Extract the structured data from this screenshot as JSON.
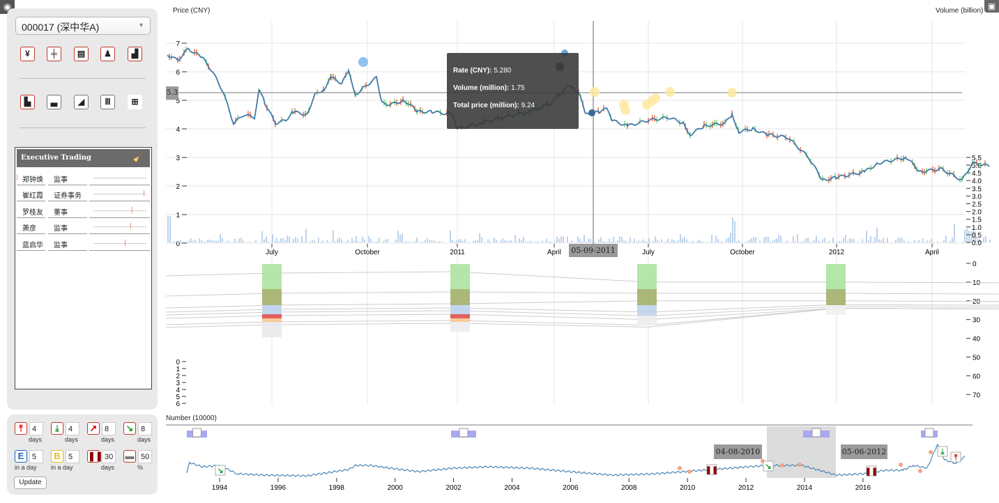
{
  "header": {
    "price_axis_label": "Price (CNY)",
    "volume_axis_label": "Volume (billion)",
    "camera_icon": "camera-icon",
    "screen_icon": "presentation-icon"
  },
  "sidebar": {
    "stock_select": "000017 (深中华A)",
    "row1_icons": [
      "yen-icon",
      "candlestick-icon",
      "documents-icon",
      "executive-icon",
      "bar-chart-icon"
    ],
    "row2_icons": [
      "stacked-bar-icon",
      "ascending-bars-icon",
      "area-chart-icon",
      "fence-icon",
      "gift-icon"
    ],
    "executive_trading": {
      "title": "Executive Trading",
      "rows": [
        {
          "name": "郑钟焕",
          "role": "监事"
        },
        {
          "name": "崔红霞",
          "role": "证券事务"
        },
        {
          "name": "罗桂友",
          "role": "董事"
        },
        {
          "name": "萧彦",
          "role": "监事"
        },
        {
          "name": "蓝启华",
          "role": "监事"
        }
      ]
    }
  },
  "params": [
    {
      "icon": "limit-up-icon",
      "value": "4",
      "unit": "days"
    },
    {
      "icon": "limit-down-icon",
      "value": "4",
      "unit": "days"
    },
    {
      "icon": "rise-icon",
      "value": "8",
      "unit": "days"
    },
    {
      "icon": "fall-icon",
      "value": "8",
      "unit": "days"
    },
    {
      "icon": "executive-e-icon",
      "value": "5",
      "unit": "in a day"
    },
    {
      "icon": "block-b-icon",
      "value": "5",
      "unit": "in a day"
    },
    {
      "icon": "suspension-icon",
      "value": "30",
      "unit": "days"
    },
    {
      "icon": "factory-icon",
      "value": "50",
      "unit": "%"
    }
  ],
  "update_label": "Update",
  "main": {
    "price_ticks": [
      "0",
      "1",
      "2",
      "3",
      "4",
      "5",
      "6",
      "7"
    ],
    "volume_ticks": [
      "0.0",
      "0.5",
      "1.0",
      "1.5",
      "2.0",
      "2.5",
      "3.0",
      "3.5",
      "4.0",
      "4.5",
      "5.0",
      "5.5"
    ],
    "x_ticks": [
      "July",
      "October",
      "2011",
      "April",
      "July",
      "October",
      "2012",
      "April"
    ],
    "rank_ticks": [
      "0",
      "10",
      "20",
      "30",
      "40",
      "50",
      "60",
      "70"
    ],
    "count_ticks": [
      "0",
      "1",
      "2",
      "3",
      "4",
      "5",
      "6"
    ],
    "cursor_date": "05-09-2011",
    "hover_price": "5.3",
    "tooltip": {
      "rate_label": "Rate (CNY):",
      "rate": "5.280",
      "volume_label": "Volume (million):",
      "volume": "1.75",
      "total_label": "Total price (million):",
      "total": "9.24"
    }
  },
  "overview": {
    "label": "Number (10000)",
    "years": [
      "1994",
      "1996",
      "1998",
      "2000",
      "2002",
      "2004",
      "2006",
      "2008",
      "2010",
      "2012",
      "2014",
      "2016"
    ],
    "brush_start": "04-08-2010",
    "brush_end": "05-06-2012"
  },
  "colors": {
    "line": "#3f79a8",
    "up": "#e8734a",
    "down": "#7fd47f",
    "volume": "#b9d1ea",
    "brush": "#dcdcdc",
    "event": "#a8a8f0"
  },
  "chart_data": {
    "type": "line",
    "title": "",
    "xlabel": "",
    "ylabel": "Price (CNY)",
    "ylim": [
      0,
      7.5
    ],
    "x": [
      "2010-05",
      "2010-07",
      "2010-10",
      "2011-01",
      "2011-04",
      "2011-05-09",
      "2011-07",
      "2011-10",
      "2012-01",
      "2012-04"
    ],
    "values": [
      6.6,
      4.3,
      5.2,
      4.5,
      5.5,
      5.28,
      4.3,
      4.4,
      2.3,
      2.6
    ]
  }
}
